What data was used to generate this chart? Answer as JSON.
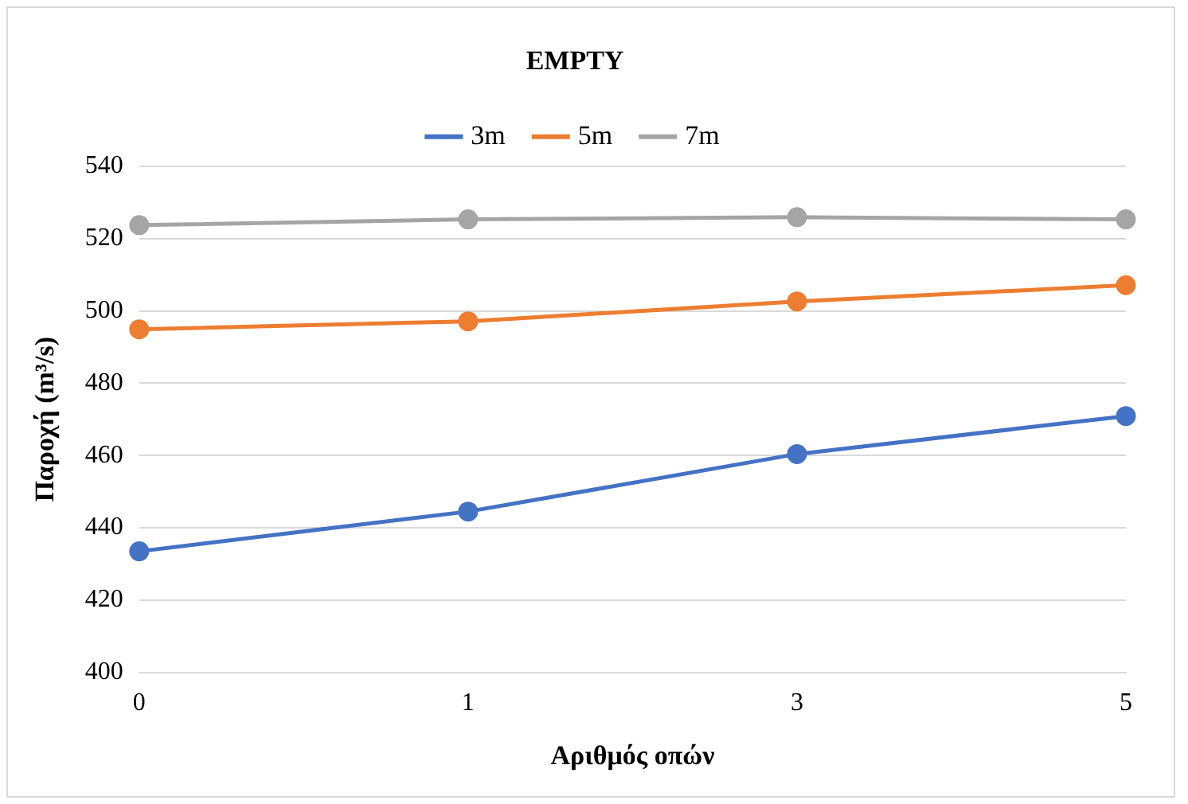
{
  "chart_data": {
    "type": "line",
    "title": "EMPTY",
    "xlabel": "Αριθμός οπών",
    "ylabel": "Παροχή (m³/s)",
    "categories": [
      "0",
      "1",
      "3",
      "5"
    ],
    "series": [
      {
        "name": "3m",
        "color": "#4472c4",
        "values": [
          433.5,
          444.5,
          460.4,
          470.9
        ]
      },
      {
        "name": "5m",
        "color": "#ed7d31",
        "values": [
          494.9,
          497.1,
          502.6,
          507.1
        ]
      },
      {
        "name": "7m",
        "color": "#a5a5a5",
        "values": [
          523.7,
          525.3,
          525.9,
          525.3
        ]
      }
    ],
    "ylim": [
      400,
      540
    ],
    "yticks": [
      400,
      420,
      440,
      460,
      480,
      500,
      520,
      540
    ],
    "grid": "y",
    "legend": "top",
    "marker": "circle",
    "line_style": "solid"
  }
}
